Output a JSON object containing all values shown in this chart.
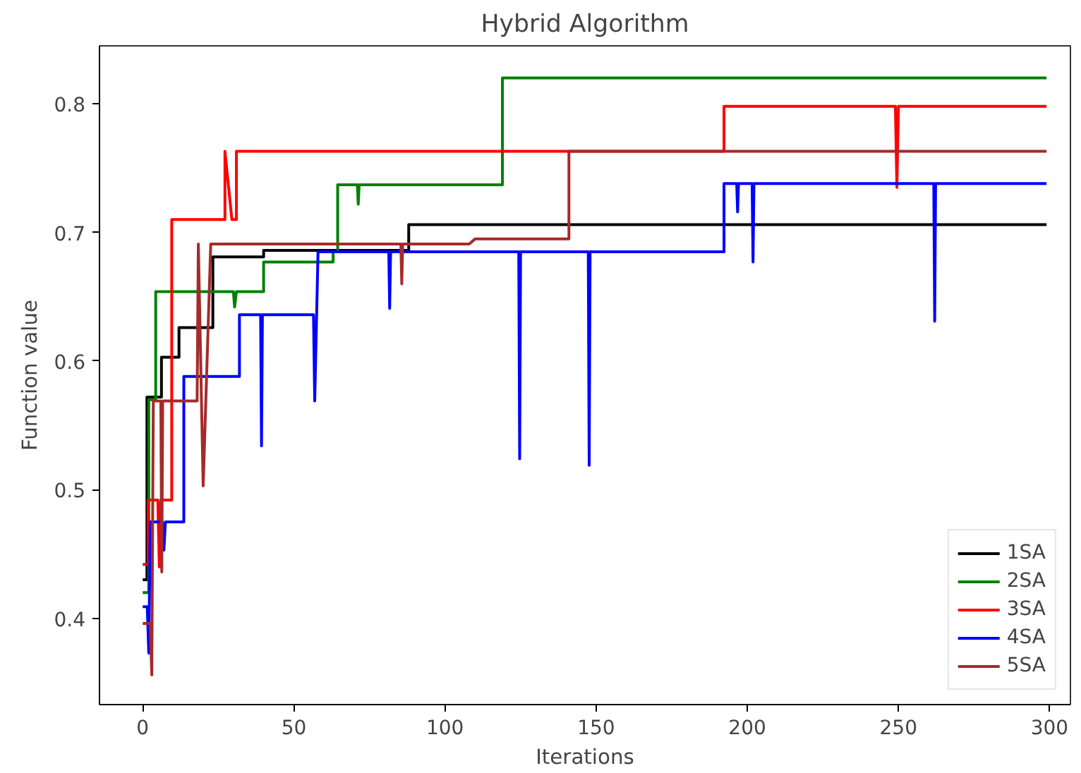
{
  "chart_data": {
    "type": "line",
    "title": "Hybrid Algorithm",
    "xlabel": "Iterations",
    "ylabel": "Function value",
    "xlim": [
      -14.3,
      306.9
    ],
    "ylim": [
      0.333,
      0.845
    ],
    "xticks": [
      0,
      50,
      100,
      150,
      200,
      250,
      300
    ],
    "yticks": [
      0.4,
      0.5,
      0.6,
      0.7,
      0.8
    ],
    "grid": false,
    "legend": "bottom right",
    "line_style": "solid",
    "series": [
      {
        "name": "1SA",
        "color": "#000000",
        "x": [
          0,
          1.4,
          1.4,
          6.2,
          6.2,
          12,
          12,
          23.2,
          23.2,
          40,
          40,
          88,
          88,
          299
        ],
        "values": [
          0.43,
          0.43,
          0.572,
          0.572,
          0.603,
          0.603,
          0.626,
          0.626,
          0.681,
          0.681,
          0.686,
          0.686,
          0.706,
          0.706
        ]
      },
      {
        "name": "2SA",
        "color": "#008000",
        "x": [
          0,
          2,
          2,
          4.3,
          4.3,
          30,
          30.4,
          31,
          40,
          40,
          63,
          63,
          64.5,
          64.5,
          71,
          71.3,
          71.6,
          119,
          119,
          299
        ],
        "values": [
          0.42,
          0.42,
          0.57,
          0.57,
          0.654,
          0.654,
          0.642,
          0.654,
          0.654,
          0.677,
          0.677,
          0.685,
          0.685,
          0.737,
          0.737,
          0.722,
          0.737,
          0.737,
          0.82,
          0.82
        ]
      },
      {
        "name": "3SA",
        "color": "#ff0000",
        "x": [
          0,
          1.8,
          1.8,
          5,
          5.5,
          6,
          9.6,
          9.6,
          27.2,
          27.2,
          29.5,
          31,
          31,
          192.3,
          192.3,
          249,
          249.5,
          250,
          299
        ],
        "values": [
          0.442,
          0.442,
          0.492,
          0.492,
          0.44,
          0.492,
          0.492,
          0.71,
          0.71,
          0.763,
          0.71,
          0.71,
          0.763,
          0.763,
          0.798,
          0.798,
          0.735,
          0.798,
          0.798
        ]
      },
      {
        "name": "4SA",
        "color": "#0000ff",
        "x": [
          0,
          1.5,
          2,
          2.5,
          2.5,
          6.5,
          7,
          7.5,
          13.6,
          13.6,
          32,
          32,
          39,
          39.3,
          39.6,
          56.5,
          56.9,
          58,
          81.4,
          81.7,
          82,
          124.4,
          124.7,
          125,
          147.4,
          147.7,
          148,
          192.3,
          192.3,
          196.5,
          196.8,
          197.1,
          201.6,
          201.9,
          202.2,
          261.7,
          262,
          262.3,
          299
        ],
        "values": [
          0.409,
          0.409,
          0.373,
          0.475,
          0.475,
          0.475,
          0.453,
          0.475,
          0.475,
          0.588,
          0.588,
          0.636,
          0.636,
          0.534,
          0.636,
          0.636,
          0.569,
          0.685,
          0.685,
          0.641,
          0.685,
          0.685,
          0.524,
          0.685,
          0.685,
          0.519,
          0.685,
          0.685,
          0.738,
          0.738,
          0.716,
          0.738,
          0.738,
          0.677,
          0.738,
          0.738,
          0.631,
          0.738,
          0.738
        ]
      },
      {
        "name": "5SA",
        "color": "#a52a2a",
        "x": [
          0,
          2.5,
          3,
          3.5,
          6,
          6.3,
          6.6,
          18,
          18.4,
          20,
          22.5,
          85.4,
          85.7,
          86,
          108,
          110,
          141,
          141,
          299
        ],
        "values": [
          0.396,
          0.396,
          0.356,
          0.569,
          0.569,
          0.436,
          0.569,
          0.569,
          0.691,
          0.503,
          0.691,
          0.691,
          0.66,
          0.691,
          0.691,
          0.695,
          0.695,
          0.763,
          0.763
        ]
      }
    ]
  }
}
